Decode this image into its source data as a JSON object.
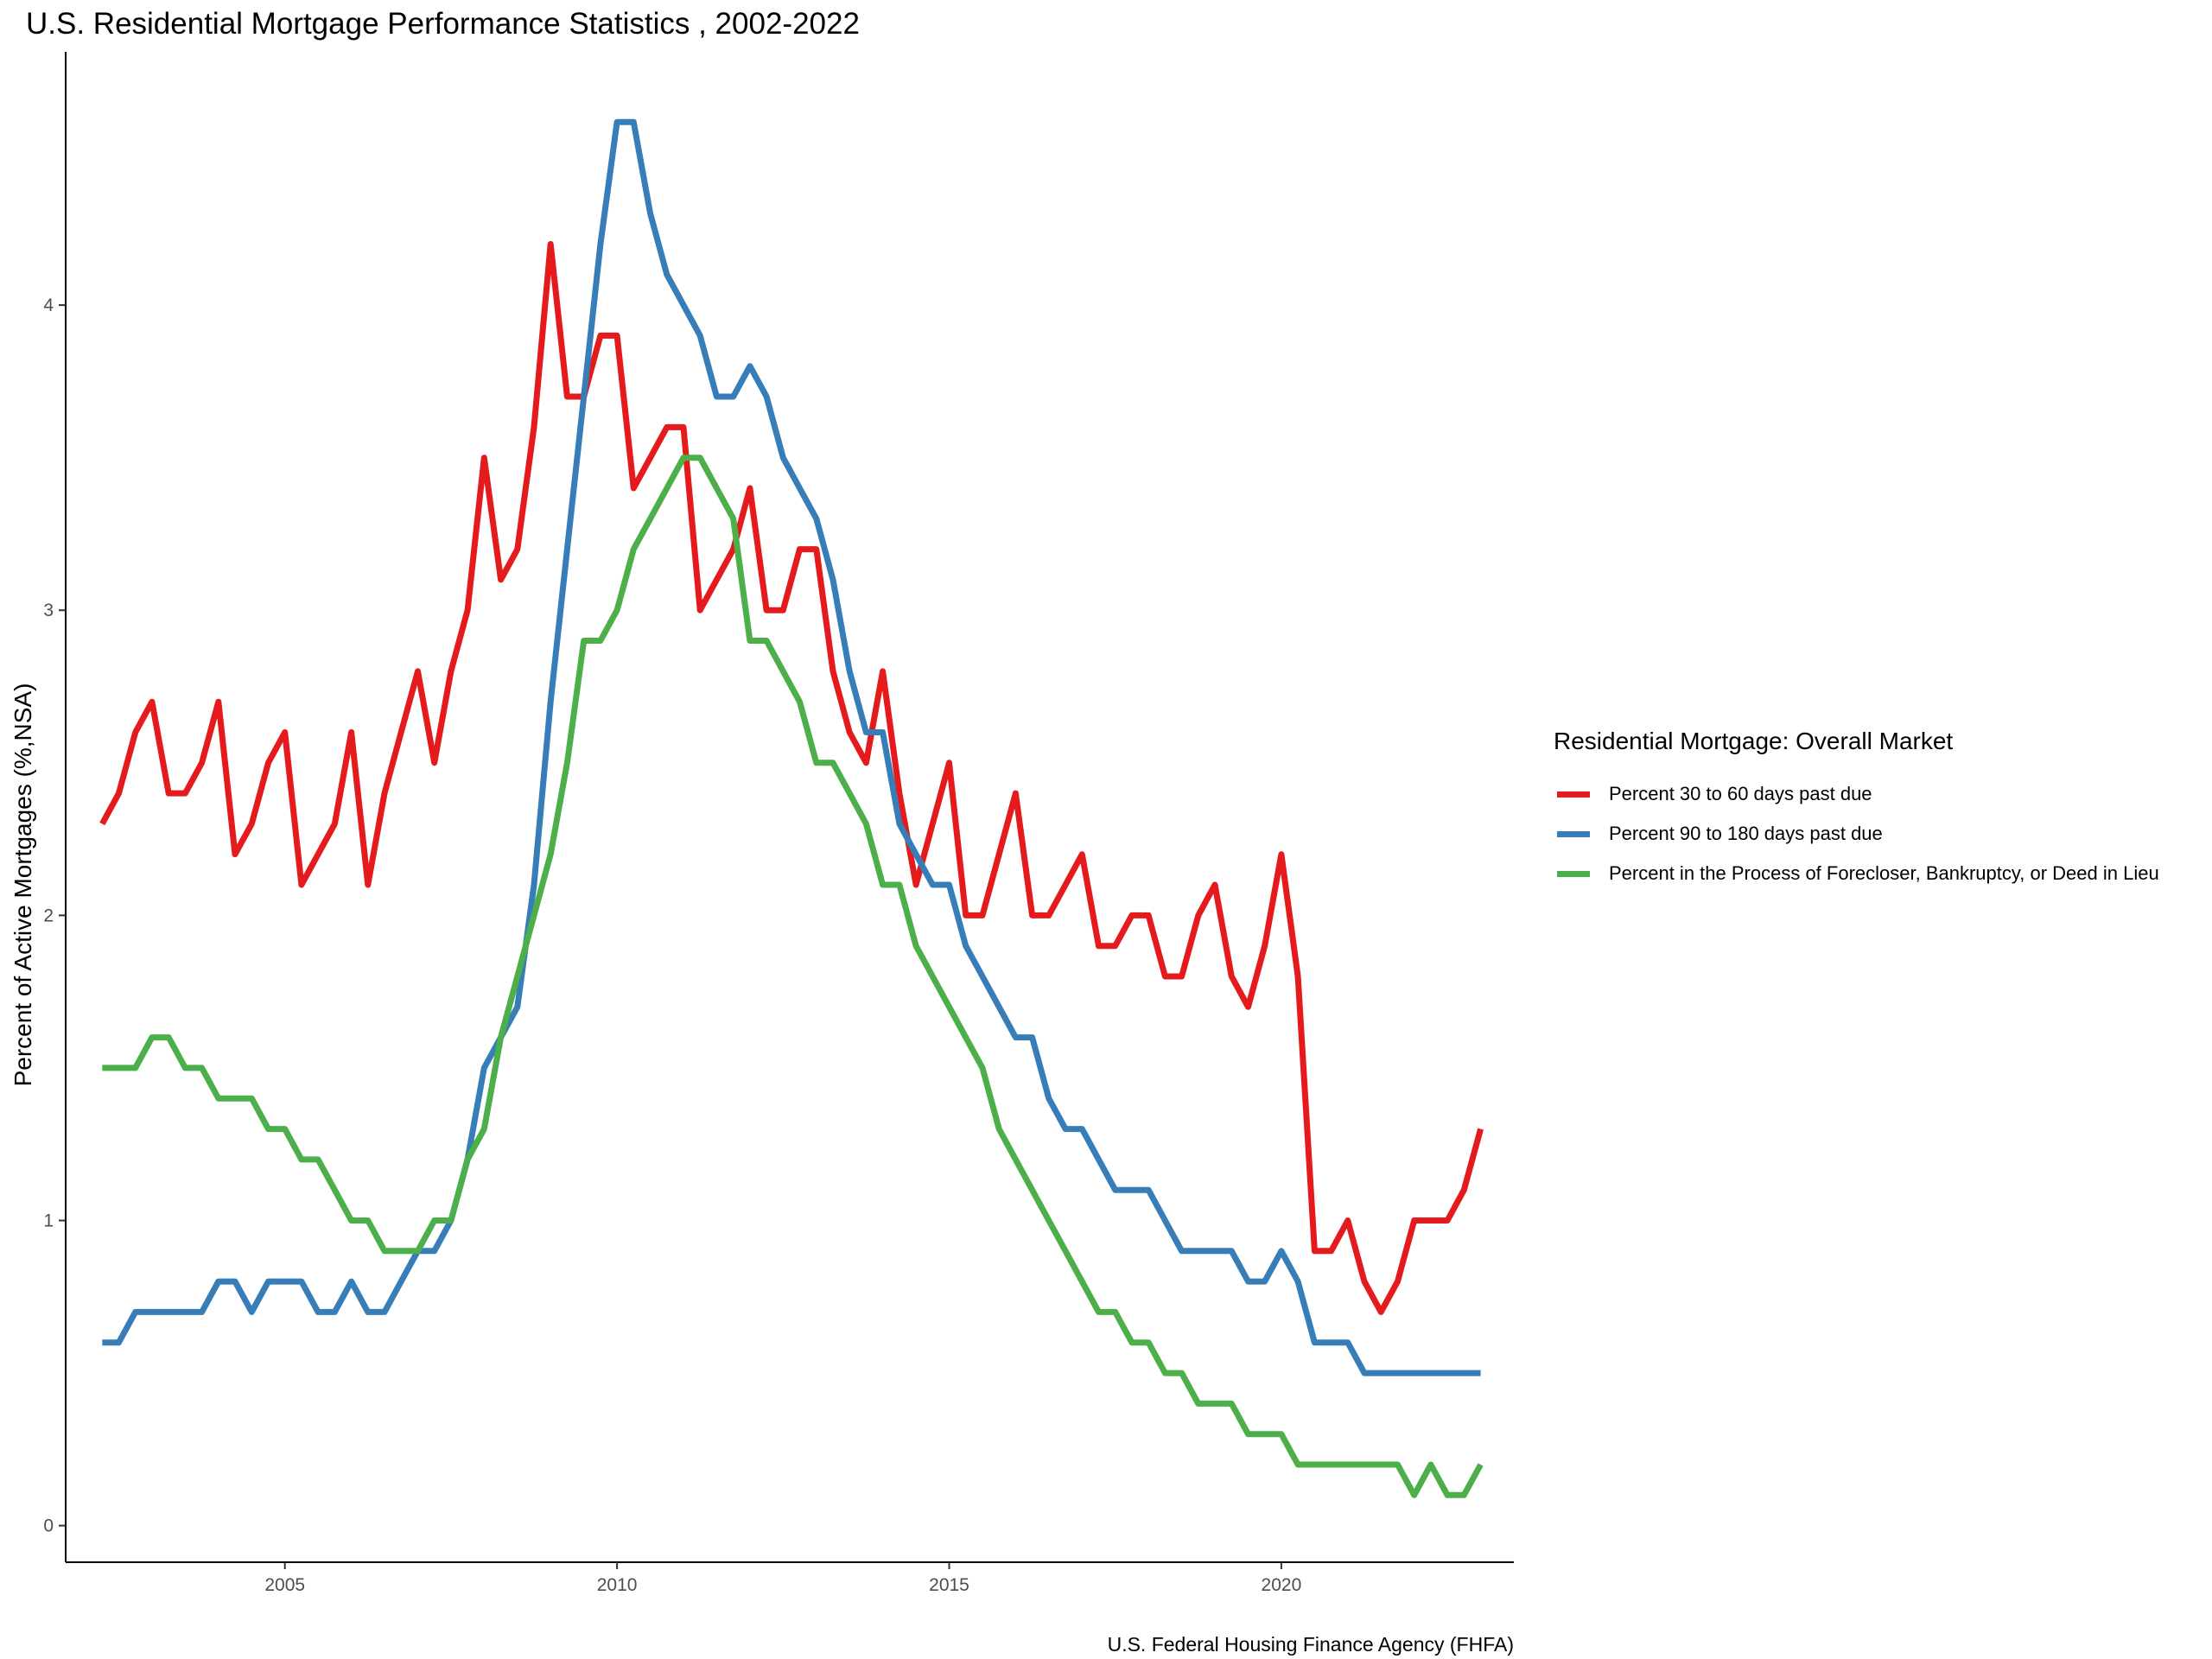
{
  "chart_data": {
    "type": "line",
    "title": "U.S. Residential Mortgage Performance Statistics , 2002-2022",
    "xlabel": "",
    "ylabel": "Percent of Active Mortgages (%,NSA)",
    "caption": "U.S. Federal Housing Finance Agency (FHFA)",
    "xlim": [
      2001.7,
      2023.5
    ],
    "ylim": [
      -0.12,
      4.83
    ],
    "x_ticks": [
      2005,
      2010,
      2015,
      2020
    ],
    "x_tick_labels": [
      "2005",
      "2010",
      "2015",
      "2020"
    ],
    "y_ticks": [
      0,
      1,
      2,
      3,
      4
    ],
    "y_tick_labels": [
      "0",
      "1",
      "2",
      "3",
      "4"
    ],
    "grid": false,
    "legend": {
      "title": "Residential Mortgage: Overall Market",
      "position": "right"
    },
    "x": [
      2002.25,
      2002.5,
      2002.75,
      2003.0,
      2003.25,
      2003.5,
      2003.75,
      2004.0,
      2004.25,
      2004.5,
      2004.75,
      2005.0,
      2005.25,
      2005.5,
      2005.75,
      2006.0,
      2006.25,
      2006.5,
      2006.75,
      2007.0,
      2007.25,
      2007.5,
      2007.75,
      2008.0,
      2008.25,
      2008.5,
      2008.75,
      2009.0,
      2009.25,
      2009.5,
      2009.75,
      2010.0,
      2010.25,
      2010.5,
      2010.75,
      2011.0,
      2011.25,
      2011.5,
      2011.75,
      2012.0,
      2012.25,
      2012.5,
      2012.75,
      2013.0,
      2013.25,
      2013.5,
      2013.75,
      2014.0,
      2014.25,
      2014.5,
      2014.75,
      2015.0,
      2015.25,
      2015.5,
      2015.75,
      2016.0,
      2016.25,
      2016.5,
      2016.75,
      2017.0,
      2017.25,
      2017.5,
      2017.75,
      2018.0,
      2018.25,
      2018.5,
      2018.75,
      2019.0,
      2019.25,
      2019.5,
      2019.75,
      2020.0,
      2020.25,
      2020.5,
      2020.75,
      2021.0,
      2021.25,
      2021.5,
      2021.75,
      2022.0,
      2022.25,
      2022.5,
      2022.75,
      2023.0
    ],
    "series": [
      {
        "name": "Percent 30 to 60 days past due",
        "color": "#e41a1c",
        "values": [
          2.3,
          2.4,
          2.6,
          2.7,
          2.4,
          2.4,
          2.5,
          2.7,
          2.2,
          2.3,
          2.5,
          2.6,
          2.1,
          2.2,
          2.3,
          2.6,
          2.1,
          2.4,
          2.6,
          2.8,
          2.5,
          2.8,
          3.0,
          3.5,
          3.1,
          3.2,
          3.6,
          4.2,
          3.7,
          3.7,
          3.9,
          3.9,
          3.4,
          3.5,
          3.6,
          3.6,
          3.0,
          3.1,
          3.2,
          3.4,
          3.0,
          3.0,
          3.2,
          3.2,
          2.8,
          2.6,
          2.5,
          2.8,
          2.4,
          2.1,
          2.3,
          2.5,
          2.0,
          2.0,
          2.2,
          2.4,
          2.0,
          2.0,
          2.1,
          2.2,
          1.9,
          1.9,
          2.0,
          2.0,
          1.8,
          1.8,
          2.0,
          2.1,
          1.8,
          1.7,
          1.9,
          2.2,
          1.8,
          0.9,
          0.9,
          1.0,
          0.8,
          0.7,
          0.8,
          1.0,
          1.0,
          1.0,
          1.1,
          1.3
        ]
      },
      {
        "name": "Percent 90 to 180 days past due",
        "color": "#377eb8",
        "values": [
          0.6,
          0.6,
          0.7,
          0.7,
          0.7,
          0.7,
          0.7,
          0.8,
          0.8,
          0.7,
          0.8,
          0.8,
          0.8,
          0.7,
          0.7,
          0.8,
          0.7,
          0.7,
          0.8,
          0.9,
          0.9,
          1.0,
          1.2,
          1.5,
          1.6,
          1.7,
          2.1,
          2.7,
          3.2,
          3.7,
          4.2,
          4.6,
          4.6,
          4.3,
          4.1,
          4.0,
          3.9,
          3.7,
          3.7,
          3.8,
          3.7,
          3.5,
          3.4,
          3.3,
          3.1,
          2.8,
          2.6,
          2.6,
          2.3,
          2.2,
          2.1,
          2.1,
          1.9,
          1.8,
          1.7,
          1.6,
          1.6,
          1.4,
          1.3,
          1.3,
          1.2,
          1.1,
          1.1,
          1.1,
          1.0,
          0.9,
          0.9,
          0.9,
          0.9,
          0.8,
          0.8,
          0.9,
          0.8,
          0.6,
          0.6,
          0.6,
          0.5,
          0.5,
          0.5,
          0.5,
          0.5,
          0.5,
          0.5,
          0.5
        ]
      },
      {
        "name": "Percent in the Process of Forecloser, Bankruptcy, or Deed in Lieu",
        "color": "#4daf4a",
        "values": [
          1.5,
          1.5,
          1.5,
          1.6,
          1.6,
          1.5,
          1.5,
          1.4,
          1.4,
          1.4,
          1.3,
          1.3,
          1.2,
          1.2,
          1.1,
          1.0,
          1.0,
          0.9,
          0.9,
          0.9,
          1.0,
          1.0,
          1.2,
          1.3,
          1.6,
          1.8,
          2.0,
          2.2,
          2.5,
          2.9,
          2.9,
          3.0,
          3.2,
          3.3,
          3.4,
          3.5,
          3.5,
          3.4,
          3.3,
          2.9,
          2.9,
          2.8,
          2.7,
          2.5,
          2.5,
          2.4,
          2.3,
          2.1,
          2.1,
          1.9,
          1.8,
          1.7,
          1.6,
          1.5,
          1.3,
          1.2,
          1.1,
          1.0,
          0.9,
          0.8,
          0.7,
          0.7,
          0.6,
          0.6,
          0.5,
          0.5,
          0.4,
          0.4,
          0.4,
          0.3,
          0.3,
          0.3,
          0.2,
          0.2,
          0.2,
          0.2,
          0.2,
          0.2,
          0.2,
          0.1,
          0.2,
          0.1,
          0.1,
          0.2
        ]
      }
    ]
  }
}
